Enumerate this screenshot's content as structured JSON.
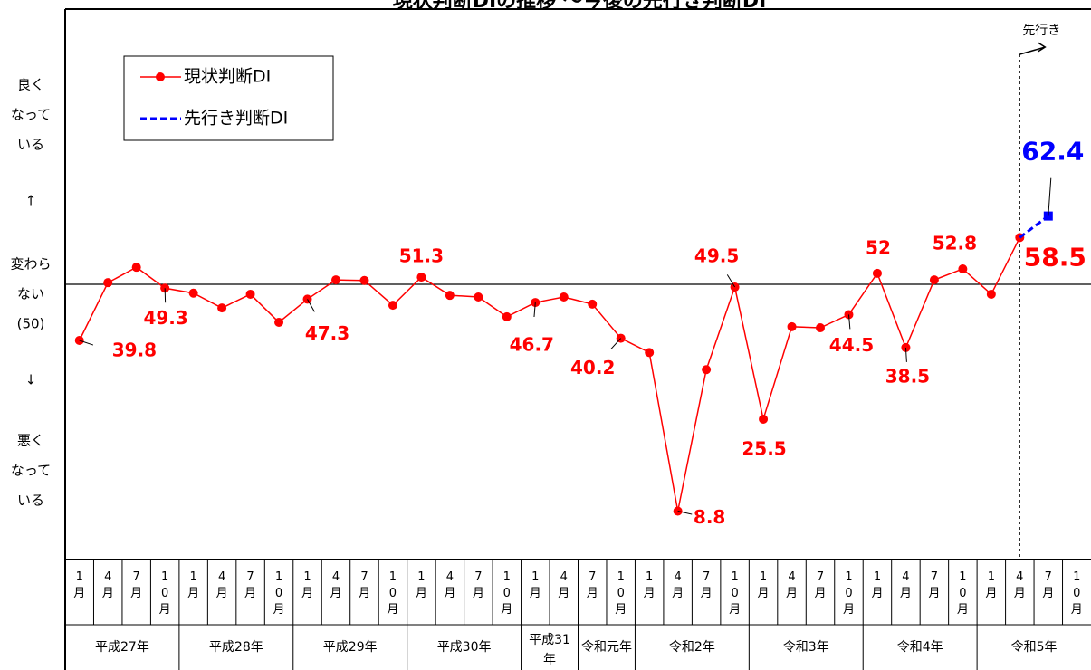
{
  "chart_data": {
    "type": "line",
    "title": "現状判断DIの推移 ～今後の先行き判断DI",
    "categories": [
      "1月",
      "4月",
      "7月",
      "10月",
      "1月",
      "4月",
      "7月",
      "10月",
      "1月",
      "4月",
      "7月",
      "10月",
      "1月",
      "4月",
      "7月",
      "10月",
      "1月",
      "4月",
      "7月",
      "10月",
      "1月",
      "4月",
      "7月",
      "10月",
      "1月",
      "4月",
      "7月",
      "10月",
      "1月",
      "4月",
      "7月",
      "10月",
      "1月",
      "4月",
      "7月",
      "10月"
    ],
    "x_groups": [
      {
        "label": "平成27年",
        "count": 4
      },
      {
        "label": "平成28年",
        "count": 4
      },
      {
        "label": "平成29年",
        "count": 4
      },
      {
        "label": "平成30年",
        "count": 4
      },
      {
        "label": "平成31年",
        "count": 2
      },
      {
        "label": "令和元年",
        "count": 2
      },
      {
        "label": "令和2年",
        "count": 4
      },
      {
        "label": "令和3年",
        "count": 4
      },
      {
        "label": "令和4年",
        "count": 4
      },
      {
        "label": "令和5年",
        "count": 4
      }
    ],
    "series": [
      {
        "name": "現状判断DI",
        "color": "#ff0000",
        "marker": "circle",
        "dash": false,
        "values": [
          39.8,
          50.3,
          53.1,
          49.3,
          48.4,
          45.7,
          48.2,
          43.1,
          47.3,
          50.8,
          50.7,
          46.2,
          51.3,
          48.0,
          47.7,
          44.1,
          46.7,
          47.7,
          46.4,
          40.2,
          37.6,
          8.8,
          34.5,
          49.5,
          25.5,
          42.3,
          42.1,
          44.5,
          52.0,
          38.5,
          50.8,
          52.8,
          48.2,
          58.5,
          null,
          null
        ],
        "labeled": [
          0,
          3,
          8,
          12,
          16,
          19,
          21,
          23,
          24,
          27,
          28,
          29,
          31,
          33
        ]
      },
      {
        "name": "先行き判断DI",
        "color": "#0000ff",
        "marker": "square",
        "dash": true,
        "values": [
          null,
          null,
          null,
          null,
          null,
          null,
          null,
          null,
          null,
          null,
          null,
          null,
          null,
          null,
          null,
          null,
          null,
          null,
          null,
          null,
          null,
          null,
          null,
          null,
          null,
          null,
          null,
          null,
          null,
          null,
          null,
          null,
          null,
          58.5,
          62.4,
          null
        ],
        "labeled": [
          34
        ]
      }
    ],
    "ylim": [
      0,
      100
    ],
    "reference_line": 50,
    "y_axis_labels": [
      [
        "良く",
        "なって",
        "いる"
      ],
      [
        "↑"
      ],
      [
        "変わら",
        "ない",
        "(50)"
      ],
      [
        "↓"
      ],
      [
        "悪く",
        "なって",
        "いる"
      ]
    ],
    "forecast_annotation": {
      "label": "先行き",
      "index": 33
    },
    "legend": "upper left"
  }
}
